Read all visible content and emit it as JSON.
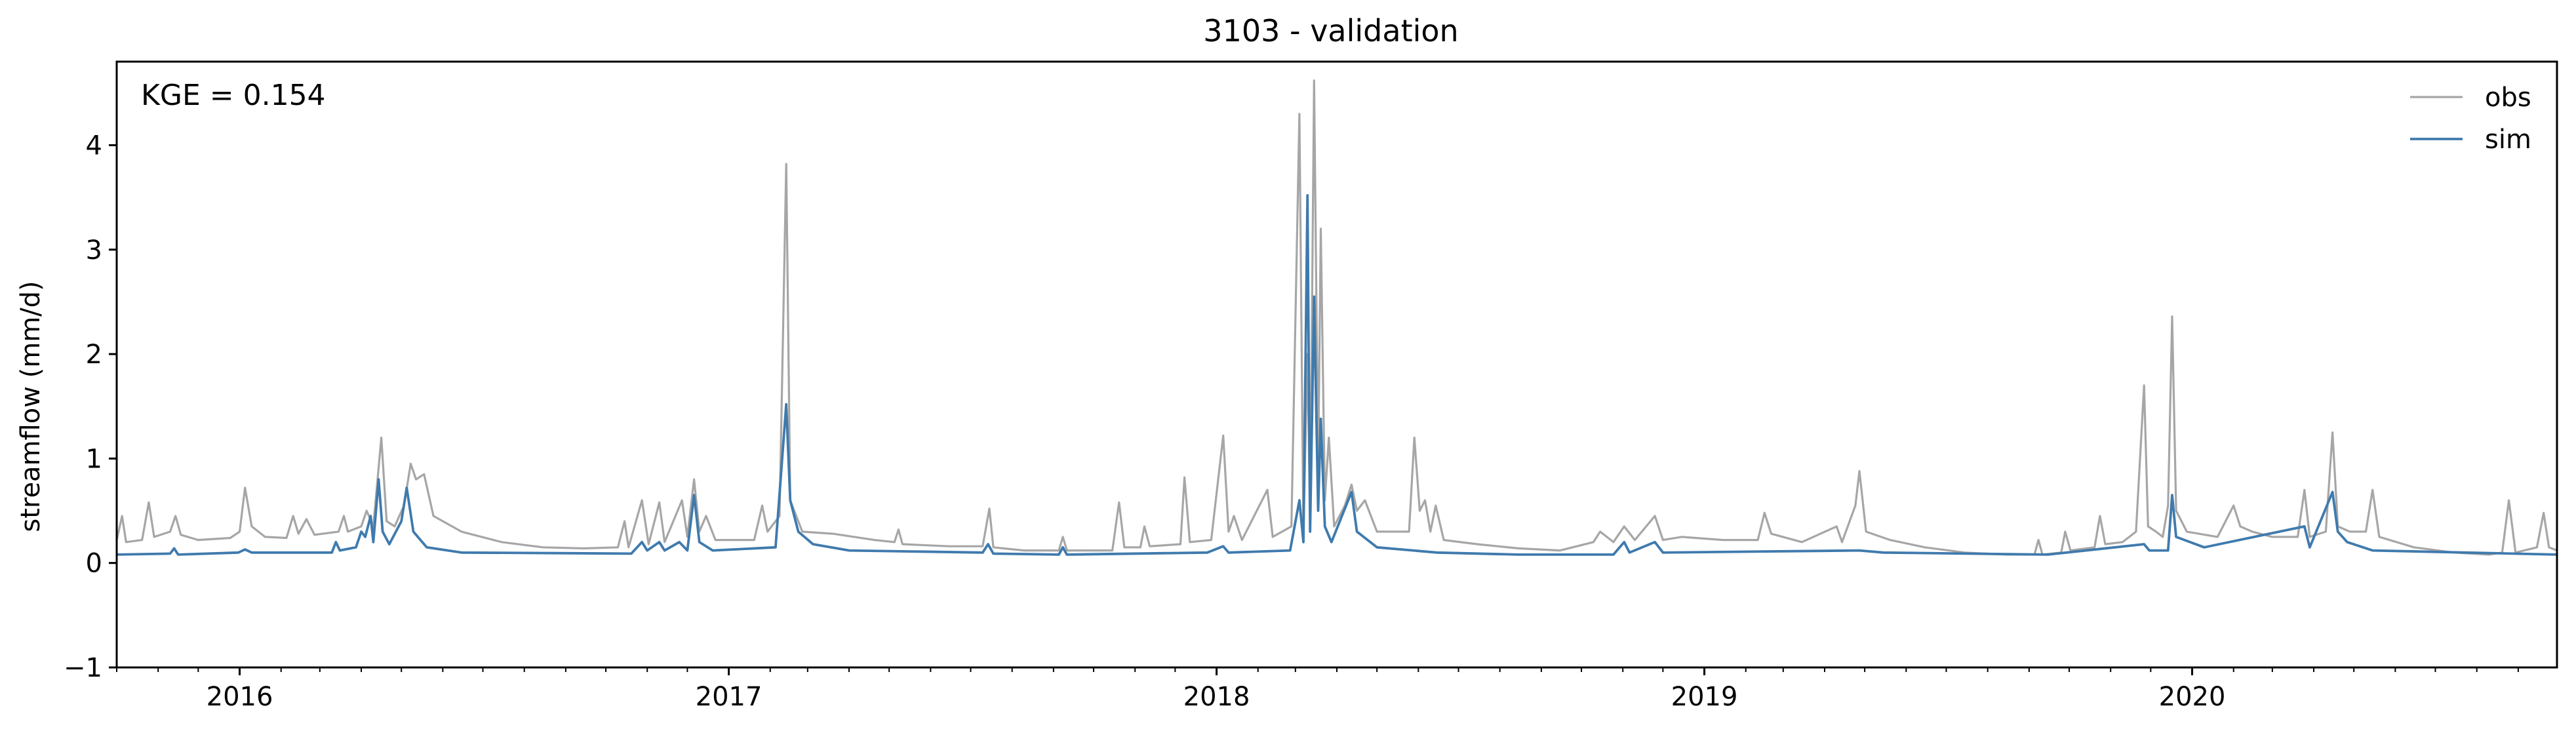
{
  "chart_data": {
    "type": "line",
    "title": "3103 - validation",
    "xlabel": "",
    "ylabel": "streamflow (mm/d)",
    "xlim": [
      "2015-10-01",
      "2020-09-30"
    ],
    "ylim": [
      -1,
      4.8
    ],
    "yticks": [
      -1,
      0,
      1,
      2,
      3,
      4
    ],
    "xticks": [
      {
        "date": "2016-01-01",
        "label": "2016"
      },
      {
        "date": "2017-01-01",
        "label": "2017"
      },
      {
        "date": "2018-01-01",
        "label": "2018"
      },
      {
        "date": "2019-01-01",
        "label": "2019"
      },
      {
        "date": "2020-01-01",
        "label": "2020"
      }
    ],
    "annotation": "KGE = 0.154",
    "legend_position": "top-right",
    "grid": false,
    "series": [
      {
        "name": "obs",
        "color": "#a6a6a6",
        "points": [
          [
            "2015-10-01",
            0.22
          ],
          [
            "2015-10-05",
            0.45
          ],
          [
            "2015-10-08",
            0.2
          ],
          [
            "2015-10-20",
            0.22
          ],
          [
            "2015-10-25",
            0.58
          ],
          [
            "2015-10-29",
            0.25
          ],
          [
            "2015-11-10",
            0.3
          ],
          [
            "2015-11-14",
            0.45
          ],
          [
            "2015-11-18",
            0.27
          ],
          [
            "2015-12-01",
            0.22
          ],
          [
            "2015-12-25",
            0.24
          ],
          [
            "2016-01-01",
            0.3
          ],
          [
            "2016-01-05",
            0.72
          ],
          [
            "2016-01-10",
            0.35
          ],
          [
            "2016-01-20",
            0.25
          ],
          [
            "2016-02-05",
            0.24
          ],
          [
            "2016-02-10",
            0.45
          ],
          [
            "2016-02-14",
            0.28
          ],
          [
            "2016-02-20",
            0.42
          ],
          [
            "2016-02-26",
            0.27
          ],
          [
            "2016-03-15",
            0.3
          ],
          [
            "2016-03-19",
            0.45
          ],
          [
            "2016-03-22",
            0.3
          ],
          [
            "2016-04-01",
            0.35
          ],
          [
            "2016-04-05",
            0.5
          ],
          [
            "2016-04-10",
            0.35
          ],
          [
            "2016-04-16",
            1.2
          ],
          [
            "2016-04-20",
            0.4
          ],
          [
            "2016-04-26",
            0.35
          ],
          [
            "2016-05-03",
            0.55
          ],
          [
            "2016-05-08",
            0.95
          ],
          [
            "2016-05-12",
            0.8
          ],
          [
            "2016-05-18",
            0.85
          ],
          [
            "2016-05-25",
            0.45
          ],
          [
            "2016-06-15",
            0.3
          ],
          [
            "2016-07-15",
            0.2
          ],
          [
            "2016-08-15",
            0.15
          ],
          [
            "2016-09-15",
            0.14
          ],
          [
            "2016-10-10",
            0.15
          ],
          [
            "2016-10-15",
            0.4
          ],
          [
            "2016-10-18",
            0.15
          ],
          [
            "2016-10-28",
            0.6
          ],
          [
            "2016-11-02",
            0.18
          ],
          [
            "2016-11-10",
            0.58
          ],
          [
            "2016-11-14",
            0.2
          ],
          [
            "2016-11-27",
            0.6
          ],
          [
            "2016-12-01",
            0.25
          ],
          [
            "2016-12-06",
            0.8
          ],
          [
            "2016-12-10",
            0.3
          ],
          [
            "2016-12-15",
            0.45
          ],
          [
            "2016-12-22",
            0.22
          ],
          [
            "2017-01-20",
            0.22
          ],
          [
            "2017-01-26",
            0.55
          ],
          [
            "2017-01-30",
            0.3
          ],
          [
            "2017-02-08",
            0.45
          ],
          [
            "2017-02-13",
            3.82
          ],
          [
            "2017-02-16",
            0.6
          ],
          [
            "2017-02-25",
            0.3
          ],
          [
            "2017-03-20",
            0.28
          ],
          [
            "2017-04-20",
            0.22
          ],
          [
            "2017-05-05",
            0.2
          ],
          [
            "2017-05-08",
            0.32
          ],
          [
            "2017-05-11",
            0.18
          ],
          [
            "2017-06-15",
            0.16
          ],
          [
            "2017-07-10",
            0.16
          ],
          [
            "2017-07-15",
            0.52
          ],
          [
            "2017-07-18",
            0.15
          ],
          [
            "2017-08-10",
            0.12
          ],
          [
            "2017-09-05",
            0.12
          ],
          [
            "2017-09-08",
            0.25
          ],
          [
            "2017-09-11",
            0.12
          ],
          [
            "2017-10-15",
            0.12
          ],
          [
            "2017-10-20",
            0.58
          ],
          [
            "2017-10-24",
            0.15
          ],
          [
            "2017-11-05",
            0.15
          ],
          [
            "2017-11-08",
            0.35
          ],
          [
            "2017-11-12",
            0.16
          ],
          [
            "2017-12-05",
            0.18
          ],
          [
            "2017-12-08",
            0.82
          ],
          [
            "2017-12-12",
            0.2
          ],
          [
            "2017-12-28",
            0.22
          ],
          [
            "2018-01-06",
            1.22
          ],
          [
            "2018-01-10",
            0.3
          ],
          [
            "2018-01-14",
            0.45
          ],
          [
            "2018-01-20",
            0.22
          ],
          [
            "2018-02-08",
            0.7
          ],
          [
            "2018-02-12",
            0.25
          ],
          [
            "2018-02-26",
            0.35
          ],
          [
            "2018-03-04",
            4.3
          ],
          [
            "2018-03-07",
            0.3
          ],
          [
            "2018-03-10",
            2.0
          ],
          [
            "2018-03-12",
            0.4
          ],
          [
            "2018-03-15",
            4.62
          ],
          [
            "2018-03-18",
            0.9
          ],
          [
            "2018-03-20",
            3.2
          ],
          [
            "2018-03-23",
            0.6
          ],
          [
            "2018-03-26",
            1.2
          ],
          [
            "2018-03-30",
            0.35
          ],
          [
            "2018-04-07",
            0.55
          ],
          [
            "2018-04-12",
            0.75
          ],
          [
            "2018-04-16",
            0.5
          ],
          [
            "2018-04-22",
            0.6
          ],
          [
            "2018-05-01",
            0.3
          ],
          [
            "2018-05-10",
            0.3
          ],
          [
            "2018-05-25",
            0.3
          ],
          [
            "2018-05-29",
            1.2
          ],
          [
            "2018-06-02",
            0.5
          ],
          [
            "2018-06-06",
            0.6
          ],
          [
            "2018-06-10",
            0.3
          ],
          [
            "2018-06-14",
            0.55
          ],
          [
            "2018-06-20",
            0.22
          ],
          [
            "2018-07-15",
            0.18
          ],
          [
            "2018-08-15",
            0.14
          ],
          [
            "2018-09-15",
            0.12
          ],
          [
            "2018-10-10",
            0.2
          ],
          [
            "2018-10-15",
            0.3
          ],
          [
            "2018-10-25",
            0.2
          ],
          [
            "2018-11-02",
            0.35
          ],
          [
            "2018-11-10",
            0.22
          ],
          [
            "2018-11-25",
            0.45
          ],
          [
            "2018-12-01",
            0.22
          ],
          [
            "2018-12-15",
            0.25
          ],
          [
            "2019-01-15",
            0.22
          ],
          [
            "2019-02-10",
            0.22
          ],
          [
            "2019-02-15",
            0.48
          ],
          [
            "2019-02-20",
            0.28
          ],
          [
            "2019-03-15",
            0.2
          ],
          [
            "2019-04-10",
            0.35
          ],
          [
            "2019-04-14",
            0.2
          ],
          [
            "2019-04-24",
            0.55
          ],
          [
            "2019-04-27",
            0.88
          ],
          [
            "2019-05-02",
            0.3
          ],
          [
            "2019-05-20",
            0.22
          ],
          [
            "2019-06-15",
            0.15
          ],
          [
            "2019-07-15",
            0.1
          ],
          [
            "2019-08-15",
            0.08
          ],
          [
            "2019-09-05",
            0.08
          ],
          [
            "2019-09-08",
            0.22
          ],
          [
            "2019-09-11",
            0.08
          ],
          [
            "2019-09-25",
            0.1
          ],
          [
            "2019-09-28",
            0.3
          ],
          [
            "2019-10-02",
            0.12
          ],
          [
            "2019-10-20",
            0.15
          ],
          [
            "2019-10-24",
            0.45
          ],
          [
            "2019-10-28",
            0.18
          ],
          [
            "2019-11-10",
            0.2
          ],
          [
            "2019-11-20",
            0.3
          ],
          [
            "2019-11-26",
            1.7
          ],
          [
            "2019-11-29",
            0.35
          ],
          [
            "2019-12-05",
            0.3
          ],
          [
            "2019-12-10",
            0.25
          ],
          [
            "2019-12-14",
            0.55
          ],
          [
            "2019-12-17",
            2.36
          ],
          [
            "2019-12-20",
            0.5
          ],
          [
            "2019-12-28",
            0.3
          ],
          [
            "2020-01-20",
            0.25
          ],
          [
            "2020-02-01",
            0.55
          ],
          [
            "2020-02-06",
            0.35
          ],
          [
            "2020-02-15",
            0.3
          ],
          [
            "2020-03-01",
            0.25
          ],
          [
            "2020-03-20",
            0.25
          ],
          [
            "2020-03-25",
            0.7
          ],
          [
            "2020-03-29",
            0.25
          ],
          [
            "2020-04-10",
            0.3
          ],
          [
            "2020-04-15",
            1.25
          ],
          [
            "2020-04-19",
            0.35
          ],
          [
            "2020-04-28",
            0.3
          ],
          [
            "2020-05-10",
            0.3
          ],
          [
            "2020-05-15",
            0.7
          ],
          [
            "2020-05-20",
            0.25
          ],
          [
            "2020-06-15",
            0.15
          ],
          [
            "2020-07-15",
            0.1
          ],
          [
            "2020-08-10",
            0.08
          ],
          [
            "2020-08-20",
            0.1
          ],
          [
            "2020-08-25",
            0.6
          ],
          [
            "2020-08-30",
            0.1
          ],
          [
            "2020-09-15",
            0.15
          ],
          [
            "2020-09-20",
            0.48
          ],
          [
            "2020-09-24",
            0.15
          ],
          [
            "2020-09-30",
            0.12
          ]
        ]
      },
      {
        "name": "sim",
        "color": "#3f7aad",
        "points": [
          [
            "2015-10-01",
            0.08
          ],
          [
            "2015-11-10",
            0.09
          ],
          [
            "2015-11-13",
            0.14
          ],
          [
            "2015-11-16",
            0.08
          ],
          [
            "2015-12-31",
            0.1
          ],
          [
            "2016-01-05",
            0.13
          ],
          [
            "2016-01-10",
            0.1
          ],
          [
            "2016-03-10",
            0.1
          ],
          [
            "2016-03-13",
            0.2
          ],
          [
            "2016-03-16",
            0.12
          ],
          [
            "2016-03-28",
            0.15
          ],
          [
            "2016-04-01",
            0.3
          ],
          [
            "2016-04-04",
            0.25
          ],
          [
            "2016-04-08",
            0.45
          ],
          [
            "2016-04-10",
            0.2
          ],
          [
            "2016-04-14",
            0.8
          ],
          [
            "2016-04-17",
            0.3
          ],
          [
            "2016-04-22",
            0.18
          ],
          [
            "2016-05-01",
            0.4
          ],
          [
            "2016-05-05",
            0.72
          ],
          [
            "2016-05-10",
            0.3
          ],
          [
            "2016-05-20",
            0.15
          ],
          [
            "2016-06-15",
            0.1
          ],
          [
            "2016-10-20",
            0.09
          ],
          [
            "2016-10-28",
            0.2
          ],
          [
            "2016-11-01",
            0.12
          ],
          [
            "2016-11-10",
            0.2
          ],
          [
            "2016-11-14",
            0.12
          ],
          [
            "2016-11-25",
            0.2
          ],
          [
            "2016-12-01",
            0.12
          ],
          [
            "2016-12-06",
            0.65
          ],
          [
            "2016-12-10",
            0.2
          ],
          [
            "2016-12-20",
            0.12
          ],
          [
            "2017-02-05",
            0.15
          ],
          [
            "2017-02-13",
            1.52
          ],
          [
            "2017-02-16",
            0.6
          ],
          [
            "2017-02-22",
            0.3
          ],
          [
            "2017-03-05",
            0.18
          ],
          [
            "2017-04-01",
            0.12
          ],
          [
            "2017-07-10",
            0.1
          ],
          [
            "2017-07-14",
            0.18
          ],
          [
            "2017-07-18",
            0.09
          ],
          [
            "2017-09-05",
            0.08
          ],
          [
            "2017-09-08",
            0.15
          ],
          [
            "2017-09-11",
            0.08
          ],
          [
            "2017-12-25",
            0.1
          ],
          [
            "2018-01-06",
            0.16
          ],
          [
            "2018-01-10",
            0.1
          ],
          [
            "2018-02-25",
            0.12
          ],
          [
            "2018-03-04",
            0.6
          ],
          [
            "2018-03-07",
            0.2
          ],
          [
            "2018-03-10",
            3.52
          ],
          [
            "2018-03-12",
            0.3
          ],
          [
            "2018-03-15",
            2.55
          ],
          [
            "2018-03-18",
            0.5
          ],
          [
            "2018-03-20",
            1.38
          ],
          [
            "2018-03-23",
            0.35
          ],
          [
            "2018-03-28",
            0.2
          ],
          [
            "2018-04-12",
            0.68
          ],
          [
            "2018-04-16",
            0.3
          ],
          [
            "2018-05-01",
            0.15
          ],
          [
            "2018-06-15",
            0.1
          ],
          [
            "2018-08-15",
            0.08
          ],
          [
            "2018-10-25",
            0.08
          ],
          [
            "2018-11-02",
            0.2
          ],
          [
            "2018-11-06",
            0.1
          ],
          [
            "2018-11-25",
            0.2
          ],
          [
            "2018-12-01",
            0.1
          ],
          [
            "2019-04-27",
            0.12
          ],
          [
            "2019-05-15",
            0.1
          ],
          [
            "2019-09-15",
            0.08
          ],
          [
            "2019-11-26",
            0.18
          ],
          [
            "2019-11-30",
            0.12
          ],
          [
            "2019-12-14",
            0.12
          ],
          [
            "2019-12-17",
            0.65
          ],
          [
            "2019-12-20",
            0.25
          ],
          [
            "2020-01-10",
            0.15
          ],
          [
            "2020-03-25",
            0.35
          ],
          [
            "2020-03-29",
            0.15
          ],
          [
            "2020-04-15",
            0.68
          ],
          [
            "2020-04-19",
            0.3
          ],
          [
            "2020-04-26",
            0.2
          ],
          [
            "2020-05-15",
            0.12
          ],
          [
            "2020-09-30",
            0.08
          ]
        ]
      }
    ]
  }
}
